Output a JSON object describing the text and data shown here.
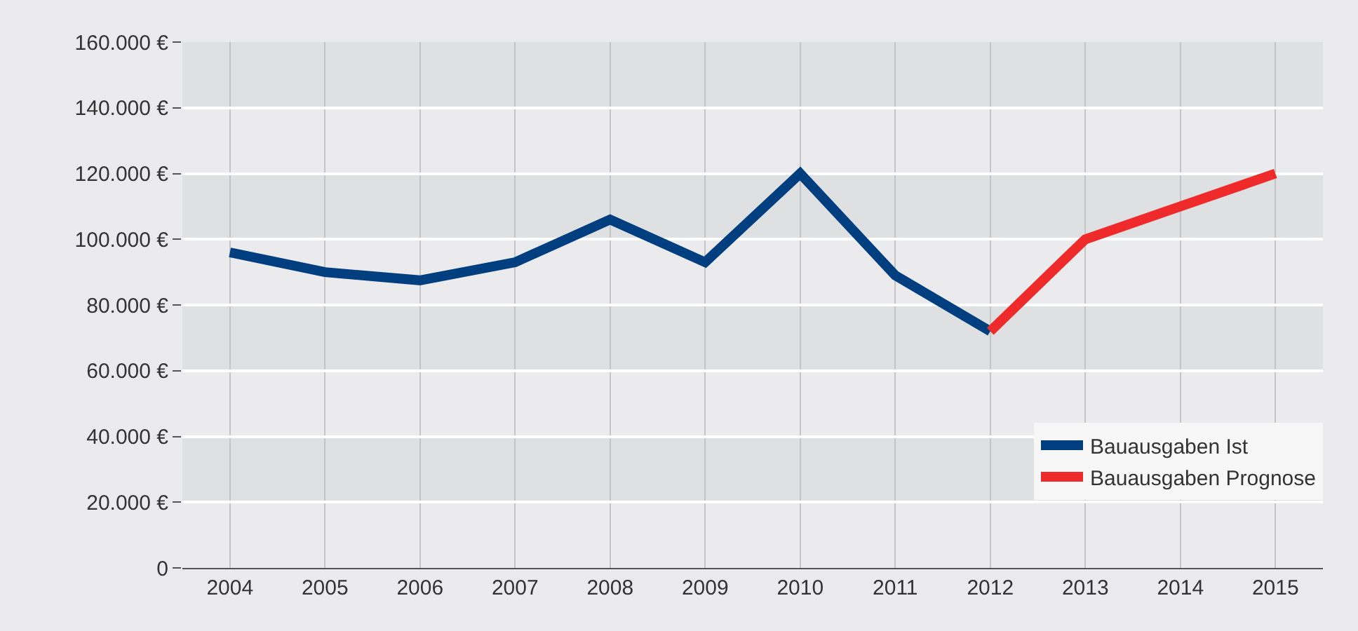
{
  "chart_data": {
    "type": "line",
    "categories": [
      "2004",
      "2005",
      "2006",
      "2007",
      "2008",
      "2009",
      "2010",
      "2011",
      "2012",
      "2013",
      "2014",
      "2015"
    ],
    "series": [
      {
        "name": "Bauausgaben Ist",
        "color": "#003f7f",
        "values": [
          96000,
          90000,
          87500,
          93000,
          106000,
          93000,
          120000,
          89000,
          72000,
          null,
          null,
          null
        ]
      },
      {
        "name": "Bauausgaben Prognose",
        "color": "#ee2a2a",
        "values": [
          null,
          null,
          null,
          null,
          null,
          null,
          null,
          null,
          72000,
          100000,
          110000,
          120000
        ]
      }
    ],
    "ylim": [
      0,
      160000
    ],
    "yticks": [
      {
        "value": 0,
        "label": "0"
      },
      {
        "value": 20000,
        "label": "20.000 €"
      },
      {
        "value": 40000,
        "label": "40.000 €"
      },
      {
        "value": 60000,
        "label": "60.000 €"
      },
      {
        "value": 80000,
        "label": "80.000 €"
      },
      {
        "value": 100000,
        "label": "100.000 €"
      },
      {
        "value": 120000,
        "label": "120.000 €"
      },
      {
        "value": 140000,
        "label": "140.000 €"
      },
      {
        "value": 160000,
        "label": "160.000 €"
      }
    ],
    "bands": [
      {
        "axis": "y",
        "from": 20000,
        "to": 40000,
        "color": "#dfe0e2"
      },
      {
        "axis": "y",
        "from": 60000,
        "to": 80000,
        "color": "#dfe0e2"
      },
      {
        "axis": "y",
        "from": 100000,
        "to": 120000,
        "color": "#dfe0e2"
      },
      {
        "axis": "y",
        "from": 140000,
        "to": 160000,
        "color": "#dfe0e2"
      }
    ],
    "grid": true,
    "legend": "bottom right",
    "marker": "none",
    "line_style": "solid"
  }
}
